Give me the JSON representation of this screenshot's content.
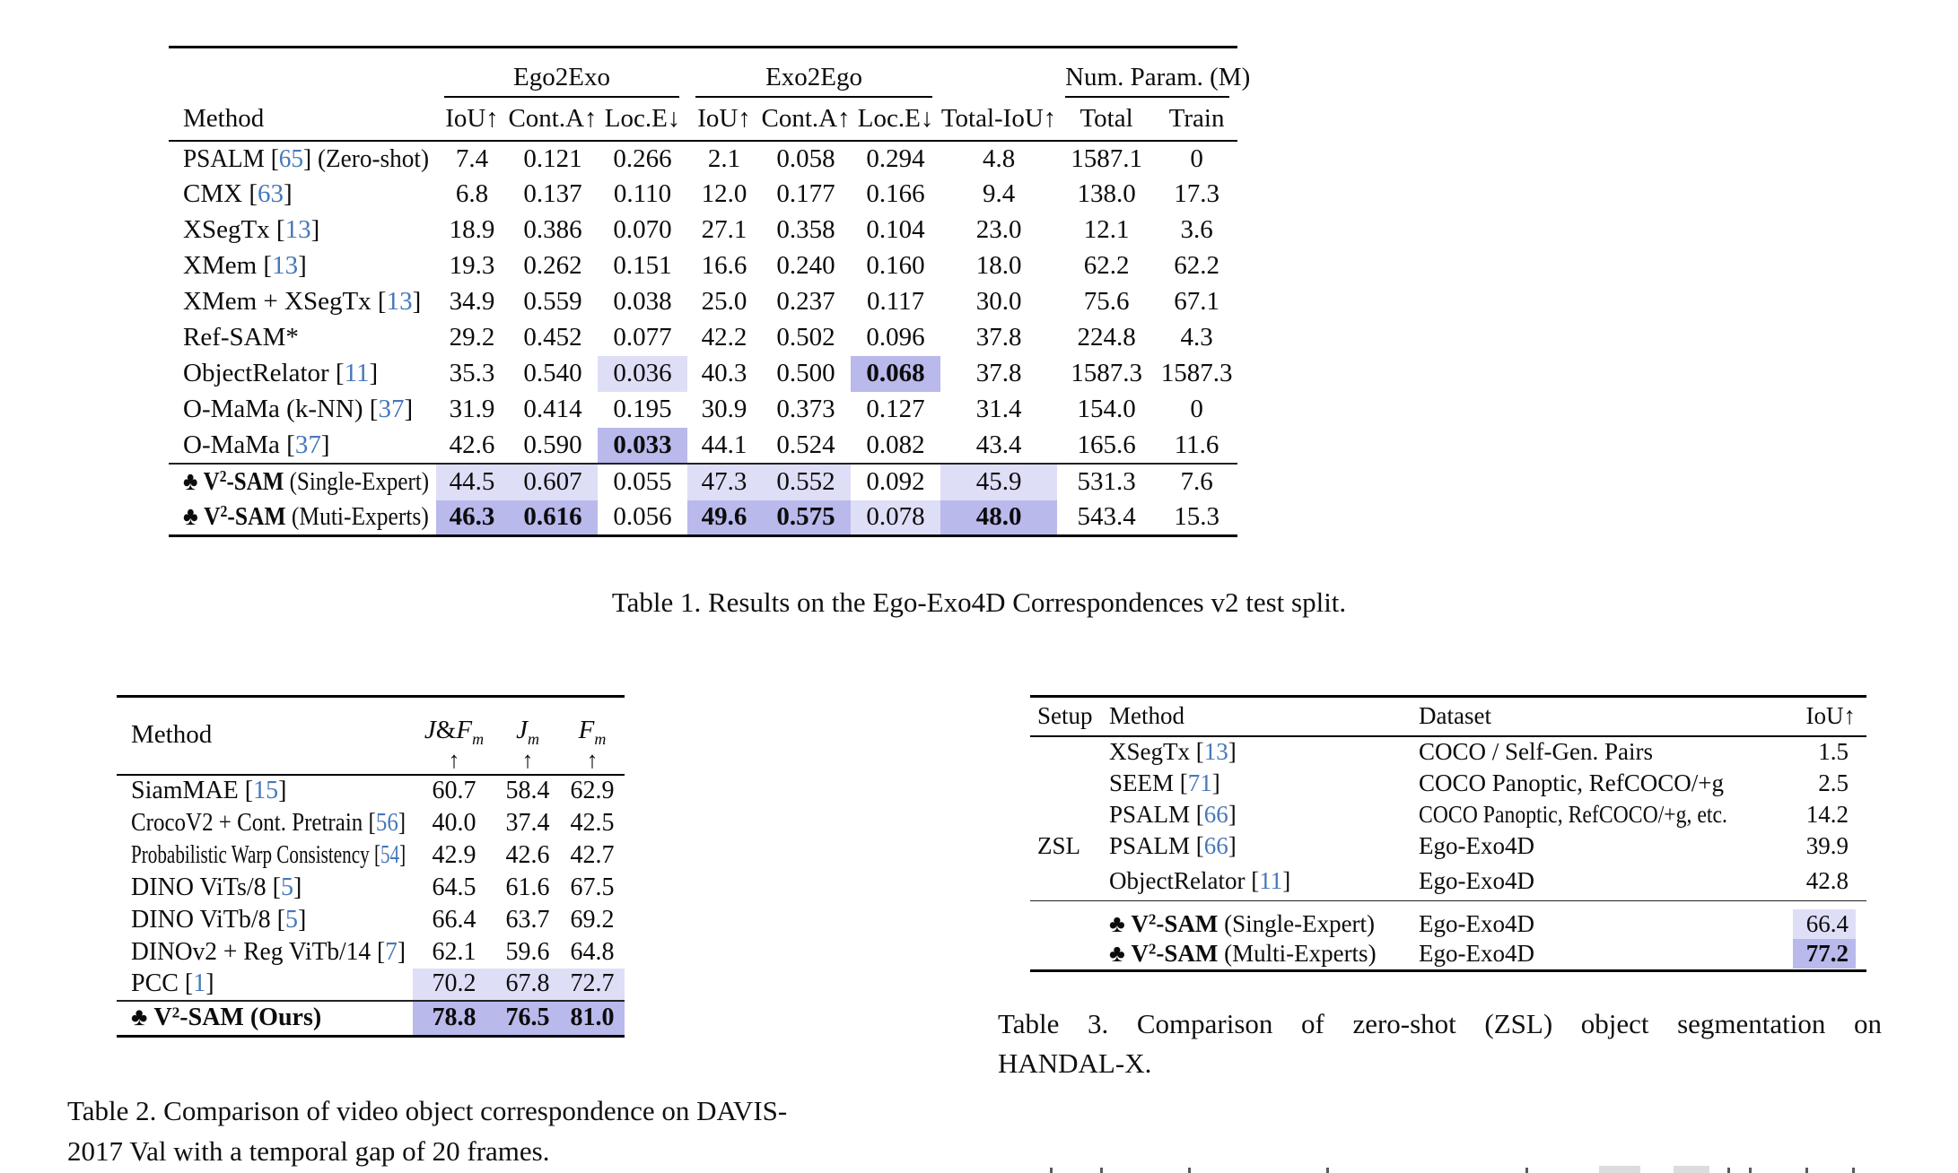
{
  "symbols": {
    "club": "♣"
  },
  "colors": {
    "highlight_best": "#b9b9ec",
    "highlight_second": "#dedef7",
    "citation": "#4678b9"
  },
  "table1": {
    "caption": "Table 1. Results on the Ego-Exo4D Correspondences v2 test split.",
    "groups": [
      {
        "label": "Ego2Exo"
      },
      {
        "label": "Exo2Ego"
      },
      {
        "label": "Num. Param. (M)"
      }
    ],
    "columns": [
      "Method",
      "IoU↑",
      "Cont.A↑",
      "Loc.E↓",
      "IoU↑",
      "Cont.A↑",
      "Loc.E↓",
      "Total-IoU↑",
      "Total",
      "Train"
    ],
    "rows": [
      {
        "method": {
          "pre": "PSALM [",
          "cite": "65",
          "post": "] (Zero-shot)"
        },
        "values": [
          "7.4",
          "0.121",
          "0.266",
          "2.1",
          "0.058",
          "0.294",
          "4.8",
          "1587.1",
          "0"
        ],
        "hl": [
          0,
          0,
          0,
          0,
          0,
          0,
          0,
          0,
          0
        ]
      },
      {
        "method": {
          "pre": "CMX [",
          "cite": "63",
          "post": "]"
        },
        "values": [
          "6.8",
          "0.137",
          "0.110",
          "12.0",
          "0.177",
          "0.166",
          "9.4",
          "138.0",
          "17.3"
        ],
        "hl": [
          0,
          0,
          0,
          0,
          0,
          0,
          0,
          0,
          0
        ]
      },
      {
        "method": {
          "pre": "XSegTx [",
          "cite": "13",
          "post": "]"
        },
        "values": [
          "18.9",
          "0.386",
          "0.070",
          "27.1",
          "0.358",
          "0.104",
          "23.0",
          "12.1",
          "3.6"
        ],
        "hl": [
          0,
          0,
          0,
          0,
          0,
          0,
          0,
          0,
          0
        ]
      },
      {
        "method": {
          "pre": "XMem [",
          "cite": "13",
          "post": "]"
        },
        "values": [
          "19.3",
          "0.262",
          "0.151",
          "16.6",
          "0.240",
          "0.160",
          "18.0",
          "62.2",
          "62.2"
        ],
        "hl": [
          0,
          0,
          0,
          0,
          0,
          0,
          0,
          0,
          0
        ]
      },
      {
        "method": {
          "pre": "XMem + XSegTx [",
          "cite": "13",
          "post": "]"
        },
        "values": [
          "34.9",
          "0.559",
          "0.038",
          "25.0",
          "0.237",
          "0.117",
          "30.0",
          "75.6",
          "67.1"
        ],
        "hl": [
          0,
          0,
          0,
          0,
          0,
          0,
          0,
          0,
          0
        ]
      },
      {
        "method": {
          "pre": "Ref-SAM*",
          "cite": "",
          "post": ""
        },
        "values": [
          "29.2",
          "0.452",
          "0.077",
          "42.2",
          "0.502",
          "0.096",
          "37.8",
          "224.8",
          "4.3"
        ],
        "hl": [
          0,
          0,
          0,
          0,
          0,
          0,
          0,
          0,
          0
        ]
      },
      {
        "method": {
          "pre": "ObjectRelator [",
          "cite": "11",
          "post": "]"
        },
        "values": [
          "35.3",
          "0.540",
          "0.036",
          "40.3",
          "0.500",
          "0.068",
          "37.8",
          "1587.3",
          "1587.3"
        ],
        "hl": [
          0,
          0,
          1,
          0,
          0,
          2,
          0,
          0,
          0
        ]
      },
      {
        "method": {
          "pre": "O-MaMa (k-NN) [",
          "cite": "37",
          "post": "]"
        },
        "values": [
          "31.9",
          "0.414",
          "0.195",
          "30.9",
          "0.373",
          "0.127",
          "31.4",
          "154.0",
          "0"
        ],
        "hl": [
          0,
          0,
          0,
          0,
          0,
          0,
          0,
          0,
          0
        ]
      },
      {
        "method": {
          "pre": "O-MaMa [",
          "cite": "37",
          "post": "]"
        },
        "values": [
          "42.6",
          "0.590",
          "0.033",
          "44.1",
          "0.524",
          "0.082",
          "43.4",
          "165.6",
          "11.6"
        ],
        "hl": [
          0,
          0,
          2,
          0,
          0,
          0,
          0,
          0,
          0
        ]
      },
      {
        "sep": true,
        "method": {
          "ours": true,
          "base": "V",
          "sup": "2",
          "rest": "-SAM",
          "suffix": "(Single-Expert)"
        },
        "values": [
          "44.5",
          "0.607",
          "0.055",
          "47.3",
          "0.552",
          "0.092",
          "45.9",
          "531.3",
          "7.6"
        ],
        "hl": [
          1,
          1,
          0,
          1,
          1,
          0,
          1,
          0,
          0
        ]
      },
      {
        "method": {
          "ours": true,
          "base": "V",
          "sup": "2",
          "rest": "-SAM",
          "suffix": "(Muti-Experts)"
        },
        "values": [
          "46.3",
          "0.616",
          "0.056",
          "49.6",
          "0.575",
          "0.078",
          "48.0",
          "543.4",
          "15.3"
        ],
        "hl": [
          2,
          2,
          0,
          2,
          2,
          1,
          2,
          0,
          0
        ]
      }
    ]
  },
  "table2": {
    "caption_lines": [
      "Table 2. Comparison of video object correspondence on DAVIS-",
      "2017 Val with a temporal gap of 20 frames."
    ],
    "header": {
      "method": "Method",
      "metrics": [
        {
          "parts": [
            "J",
            "&",
            "F"
          ],
          "sub": "m"
        },
        {
          "parts": [
            "J"
          ],
          "sub": "m"
        },
        {
          "parts": [
            "F"
          ],
          "sub": "m"
        }
      ],
      "arrow": "↑"
    },
    "rows": [
      {
        "method": {
          "pre": "SiamMAE [",
          "cite": "15",
          "post": "]"
        },
        "values": [
          "60.7",
          "58.4",
          "62.9"
        ],
        "hl": [
          0,
          0,
          0
        ]
      },
      {
        "method": {
          "pre": "CrocoV2 + Cont. Pretrain [",
          "cite": "56",
          "post": "]"
        },
        "values": [
          "40.0",
          "37.4",
          "42.5"
        ],
        "hl": [
          0,
          0,
          0
        ]
      },
      {
        "method": {
          "pre": "Probabilistic Warp Consistency [",
          "cite": "54",
          "post": "]"
        },
        "values": [
          "42.9",
          "42.6",
          "42.7"
        ],
        "hl": [
          0,
          0,
          0
        ]
      },
      {
        "method": {
          "pre": "DINO ViTs/8 [",
          "cite": "5",
          "post": "]"
        },
        "values": [
          "64.5",
          "61.6",
          "67.5"
        ],
        "hl": [
          0,
          0,
          0
        ]
      },
      {
        "method": {
          "pre": "DINO ViTb/8 [",
          "cite": "5",
          "post": "]"
        },
        "values": [
          "66.4",
          "63.7",
          "69.2"
        ],
        "hl": [
          0,
          0,
          0
        ]
      },
      {
        "method": {
          "pre": "DINOv2 + Reg ViTb/14 [",
          "cite": "7",
          "post": "]"
        },
        "values": [
          "62.1",
          "59.6",
          "64.8"
        ],
        "hl": [
          0,
          0,
          0
        ]
      },
      {
        "method": {
          "pre": "PCC [",
          "cite": "1",
          "post": "]"
        },
        "values": [
          "70.2",
          "67.8",
          "72.7"
        ],
        "hl": [
          1,
          1,
          1
        ]
      },
      {
        "sep": true,
        "method": {
          "ours": true,
          "base": "V",
          "sup": "2",
          "rest": "-SAM",
          "suffix": "(Ours)",
          "bold_suffix": true
        },
        "values": [
          "78.8",
          "76.5",
          "81.0"
        ],
        "hl": [
          2,
          2,
          2
        ]
      }
    ]
  },
  "table3": {
    "caption_lines": [
      "Table 3. Comparison of zero-shot (ZSL) object segmentation on",
      "HANDAL-X."
    ],
    "columns": [
      "Setup",
      "Method",
      "Dataset",
      "IoU↑"
    ],
    "setup_group": "ZSL",
    "rows": [
      {
        "setup": "",
        "method": {
          "pre": "XSegTx [",
          "cite": "13",
          "post": "]"
        },
        "dataset": "COCO / Self-Gen. Pairs",
        "iou": "1.5",
        "hl": 0
      },
      {
        "setup": "",
        "method": {
          "pre": "SEEM [",
          "cite": "71",
          "post": "]"
        },
        "dataset": "COCO Panoptic, RefCOCO/+g",
        "iou": "2.5",
        "hl": 0
      },
      {
        "setup": "",
        "method": {
          "pre": "PSALM [",
          "cite": "66",
          "post": "]"
        },
        "dataset": "COCO Panoptic, RefCOCO/+g, etc.",
        "iou": "14.2",
        "hl": 0
      },
      {
        "setup": "ZSL",
        "method": {
          "pre": "PSALM [",
          "cite": "66",
          "post": "]"
        },
        "dataset": "Ego-Exo4D",
        "iou": "39.9",
        "hl": 0
      },
      {
        "setup": "",
        "method": {
          "pre": "ObjectRelator [",
          "cite": "11",
          "post": "]"
        },
        "dataset": "Ego-Exo4D",
        "iou": "42.8",
        "hl": 0
      },
      {
        "sep": true,
        "setup": "",
        "method": {
          "ours": true,
          "base": "V",
          "sup": "2",
          "rest": "-SAM",
          "suffix": "(Single-Expert)"
        },
        "dataset": "Ego-Exo4D",
        "iou": "66.4",
        "hl": 1
      },
      {
        "setup": "",
        "method": {
          "ours": true,
          "base": "V",
          "sup": "2",
          "rest": "-SAM",
          "suffix": "(Multi-Experts)"
        },
        "dataset": "Ego-Exo4D",
        "iou": "77.2",
        "hl": 2
      }
    ]
  }
}
